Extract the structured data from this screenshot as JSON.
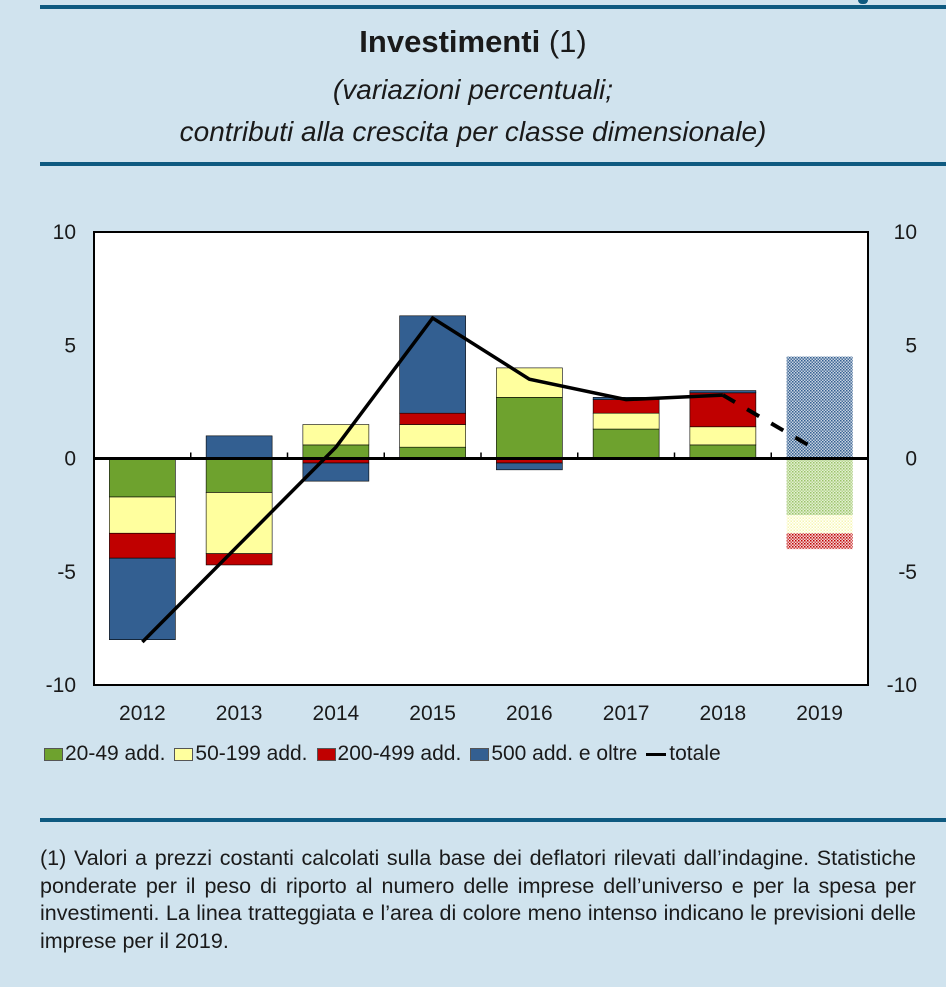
{
  "title": {
    "bold": "Investimenti",
    "ref": "(1)"
  },
  "subtitle_line1": "(variazioni percentuali;",
  "subtitle_line2": "contributi alla crescita per classe dimensionale)",
  "legend": [
    {
      "label": "20-49 add.",
      "color": "#6ea22e"
    },
    {
      "label": "50-199 add.",
      "color": "#ffff9e"
    },
    {
      "label": "200-499 add.",
      "color": "#c00000"
    },
    {
      "label": "500 add. e oltre",
      "color": "#335f91"
    },
    {
      "label": "totale",
      "color": "#000000"
    }
  ],
  "note": "(1) Valori a prezzi costanti calcolati sulla base dei deflatori rilevati dall’indagine. Statistiche ponderate per il peso di riporto al numero delle imprese dell’universo e per la spesa per investimenti. La linea tratteggiata e l’area di colore meno intenso indicano le previsioni delle imprese per il 2019.",
  "chart_data": {
    "type": "bar",
    "stacked": true,
    "title": "Investimenti (1)",
    "subtitle": "(variazioni percentuali; contributi alla crescita per classe dimensionale)",
    "xlabel": "",
    "ylabel": "",
    "ylim": [
      -10,
      10
    ],
    "yticks": [
      10,
      5,
      0,
      -5,
      -10
    ],
    "yticks_right": [
      10,
      5,
      0,
      -5,
      -10
    ],
    "grid": false,
    "legend_position": "bottom",
    "categories": [
      "2012",
      "2013",
      "2014",
      "2015",
      "2016",
      "2017",
      "2018",
      "2019"
    ],
    "forecast_categories": [
      "2019"
    ],
    "series": [
      {
        "name": "20-49 add.",
        "color": "#6ea22e",
        "forecast_color": "#b6d58e",
        "values": [
          -1.7,
          -1.5,
          0.6,
          0.5,
          2.7,
          1.3,
          0.6,
          -2.5
        ]
      },
      {
        "name": "50-199 add.",
        "color": "#ffff9e",
        "forecast_color": "#fbfbd0",
        "values": [
          -1.6,
          -2.7,
          0.9,
          1.0,
          1.3,
          0.7,
          0.8,
          -0.8
        ]
      },
      {
        "name": "200-499 add.",
        "color": "#c00000",
        "forecast_color": "#d97a7a",
        "values": [
          -1.1,
          -0.5,
          -0.2,
          0.5,
          -0.2,
          0.6,
          1.5,
          -0.7
        ]
      },
      {
        "name": "500 add. e oltre",
        "color": "#335f91",
        "forecast_color": "#8aa5c4",
        "values": [
          -3.6,
          1.0,
          -0.8,
          4.3,
          -0.3,
          0.1,
          0.1,
          4.5
        ]
      }
    ],
    "line": {
      "name": "totale",
      "color": "#000000",
      "values": [
        -8.1,
        -3.8,
        0.5,
        6.2,
        3.5,
        2.6,
        2.8,
        0.3
      ],
      "dashed_from": "2018"
    }
  }
}
